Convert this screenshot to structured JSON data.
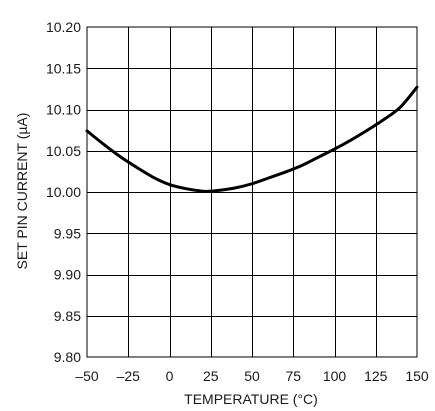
{
  "chart_data": {
    "type": "line",
    "title": "",
    "xlabel": "TEMPERATURE (°C)",
    "ylabel": "SET PIN CURRENT (µA)",
    "xlim": [
      -50,
      150
    ],
    "ylim": [
      9.8,
      10.2
    ],
    "x_ticks": [
      "–50",
      "–25",
      "0",
      "25",
      "50",
      "75",
      "100",
      "125",
      "150"
    ],
    "y_ticks": [
      "10.20",
      "10.15",
      "10.10",
      "10.05",
      "10.00",
      "9.95",
      "9.90",
      "9.85",
      "9.80"
    ],
    "x_tick_values": [
      -50,
      -25,
      0,
      25,
      50,
      75,
      100,
      125,
      150
    ],
    "y_tick_values": [
      10.2,
      10.15,
      10.1,
      10.05,
      10.0,
      9.95,
      9.9,
      9.85,
      9.8
    ],
    "grid": true,
    "series": [
      {
        "x": [
          -50,
          -40,
          -30,
          -20,
          -10,
          0,
          10,
          20,
          25,
          30,
          40,
          50,
          60,
          70,
          80,
          90,
          100,
          110,
          120,
          130,
          140,
          150
        ],
        "y": [
          10.074,
          10.058,
          10.043,
          10.03,
          10.018,
          10.009,
          10.004,
          10.001,
          10.001,
          10.002,
          10.005,
          10.01,
          10.017,
          10.024,
          10.032,
          10.042,
          10.052,
          10.063,
          10.075,
          10.088,
          10.103,
          10.127
        ],
        "color": "#000000"
      }
    ]
  }
}
